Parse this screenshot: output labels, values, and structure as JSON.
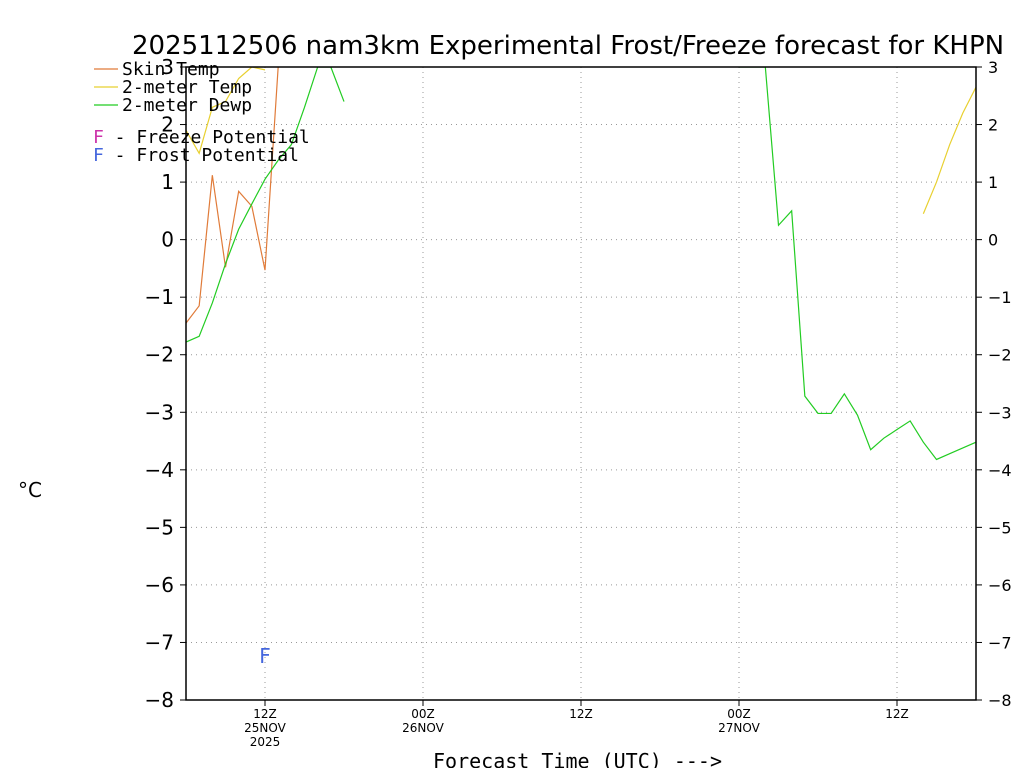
{
  "chart_data": {
    "type": "line",
    "title": "2025112506 nam3km Experimental Frost/Freeze forecast for KHPN",
    "ylabel": "°C",
    "xlabel": "Forecast Time (UTC) --->",
    "ylim": [
      -8,
      3
    ],
    "xlim_hours": [
      6,
      66
    ],
    "y_ticks": [
      3,
      2,
      1,
      0,
      -1,
      -2,
      -3,
      -4,
      -5,
      -6,
      -7,
      -8
    ],
    "y_tick_labels": [
      "3",
      "2",
      "1",
      "0",
      "−1",
      "−2",
      "−3",
      "−4",
      "−5",
      "−6",
      "−7",
      "−8"
    ],
    "x_ticks": [
      {
        "hour": 12,
        "lines": [
          "12Z",
          "25NOV",
          "2025"
        ]
      },
      {
        "hour": 24,
        "lines": [
          "00Z",
          "26NOV"
        ]
      },
      {
        "hour": 36,
        "lines": [
          "12Z"
        ]
      },
      {
        "hour": 48,
        "lines": [
          "00Z",
          "27NOV"
        ]
      },
      {
        "hour": 60,
        "lines": [
          "12Z"
        ]
      }
    ],
    "series": [
      {
        "name": "Skin Temp",
        "color": "#e07b39",
        "x": [
          6,
          7,
          8,
          9,
          10,
          11,
          12,
          13
        ],
        "y": [
          -1.45,
          -1.15,
          1.12,
          -0.48,
          0.84,
          0.58,
          -0.53,
          3.0
        ]
      },
      {
        "name": "2-meter Temp",
        "color": "#e8d030",
        "x": [
          6,
          7,
          8,
          9,
          10,
          11,
          12,
          62,
          63,
          64,
          65,
          66
        ],
        "y": [
          1.9,
          1.5,
          2.3,
          2.4,
          2.8,
          3.0,
          2.95,
          0.45,
          1.0,
          1.65,
          2.2,
          2.65
        ]
      },
      {
        "name": "2-meter Dewp",
        "color": "#22cc22",
        "x": [
          6,
          7,
          8,
          9,
          10,
          11,
          12,
          13,
          14,
          15,
          16,
          17,
          18,
          48,
          49,
          50,
          51,
          52,
          53,
          54,
          55,
          56,
          57,
          58,
          59,
          60,
          61,
          62,
          63,
          64,
          65,
          66
        ],
        "y": [
          -1.78,
          -1.68,
          -1.1,
          -0.42,
          0.18,
          0.62,
          1.05,
          1.38,
          1.65,
          2.3,
          3.0,
          3.0,
          2.4,
          3.0,
          3.0,
          3.0,
          0.25,
          0.5,
          -2.72,
          -3.02,
          -3.02,
          -2.68,
          -3.05,
          -3.65,
          -3.45,
          -3.3,
          -3.15,
          -3.52,
          -3.82,
          -3.72,
          -3.62,
          -3.52
        ]
      }
    ],
    "potential_legend": [
      {
        "letter": "F",
        "text": " - Freeze Potential",
        "color": "#cc33aa"
      },
      {
        "letter": "F",
        "text": " - Frost Potential",
        "color": "#4466dd"
      }
    ],
    "markers": [
      {
        "label": "F",
        "hour": 12,
        "y": -7.2,
        "color": "#4466dd",
        "meaning": "frost potential"
      }
    ],
    "grid": true
  }
}
